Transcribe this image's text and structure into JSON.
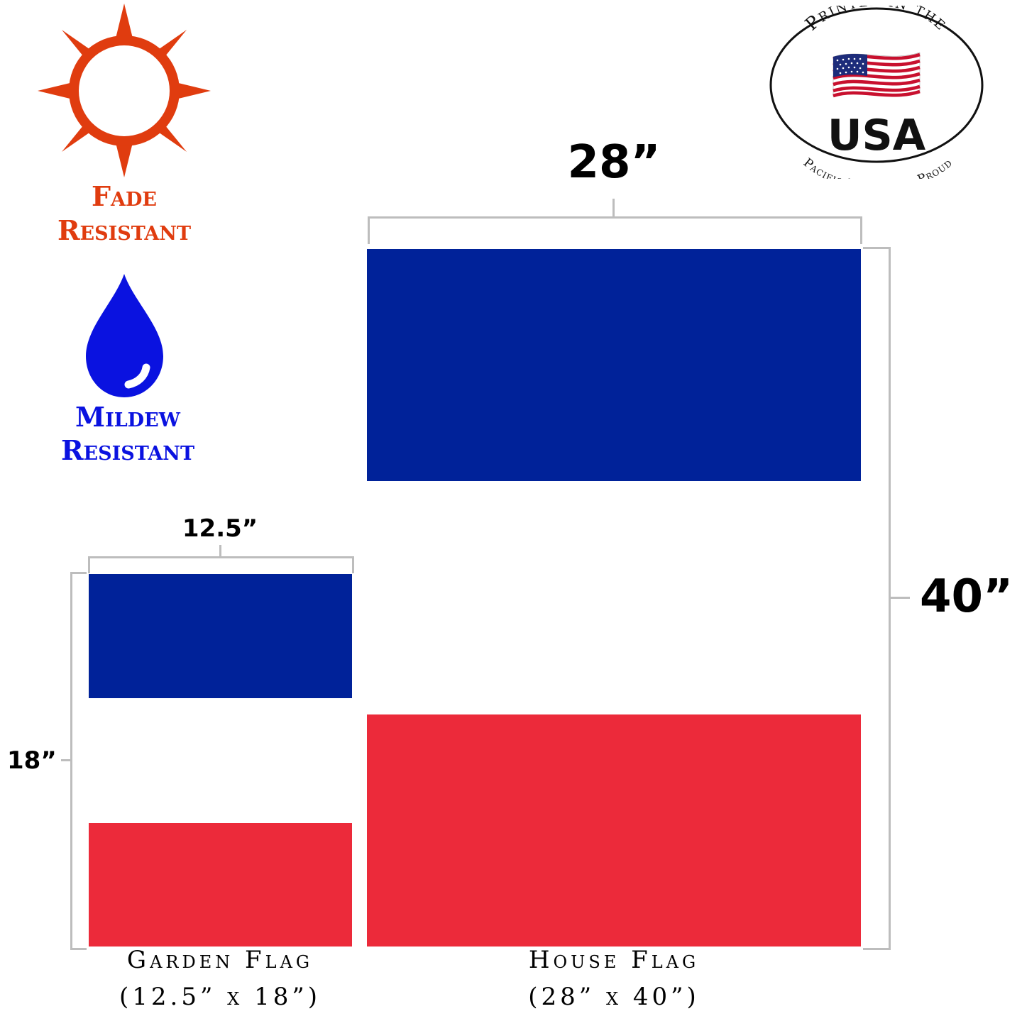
{
  "features": {
    "fade": {
      "line1": "Fade",
      "line2": "Resistant",
      "icon": "sun-icon",
      "color": "#e03c0f"
    },
    "mildew": {
      "line1": "Mildew",
      "line2": "Resistant",
      "icon": "water-drop-icon",
      "color": "#0a12e0"
    }
  },
  "badge": {
    "top_arc": "Printed in the",
    "country": "USA",
    "bottom_arc": "Pacific Northwest Proud",
    "icon": "us-flag-icon"
  },
  "house_flag": {
    "width_label": "28”",
    "height_label": "40”",
    "name": "House Flag",
    "size": "(28” x 40”)"
  },
  "garden_flag": {
    "width_label": "12.5”",
    "height_label": "18”",
    "name": "Garden Flag",
    "size": "(12.5” x 18”)"
  },
  "colors": {
    "blue": "#002299",
    "white": "#ffffff",
    "red": "#ec2a3a",
    "bracket": "#bdbdbd"
  }
}
